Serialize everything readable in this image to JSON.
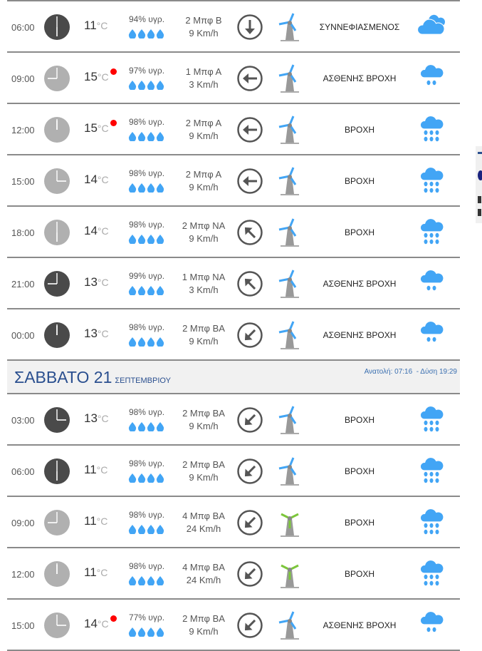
{
  "colors": {
    "accent": "#42a5f5",
    "night_clock": "#4a4a4a",
    "day_clock": "#b0b0b0",
    "alert": "#ff0000",
    "strong_wind": "#7cc63b",
    "header_text": "#2a4f8f"
  },
  "day_header": {
    "day": "ΣΑΒΒΑΤΟ 21",
    "month": "ΣΕΠΤΕΜΒΡΙΟΥ",
    "sunrise_label": "Ανατολή:",
    "sunrise": "07:16",
    "sunset_label": "- Δύση",
    "sunset": "19:29"
  },
  "unit": "°C",
  "rows_before": [
    {
      "time": "06:00",
      "night": true,
      "temp": "11",
      "alert": false,
      "humidity": "94% υγρ.",
      "beaufort": "2 Μπφ Β",
      "speed": "9 Km/h",
      "dir": "down",
      "strong": false,
      "desc": "ΣΥΝΝΕΦΙΑΣΜΕΝΟΣ",
      "icon": "cloudy"
    },
    {
      "time": "09:00",
      "night": false,
      "temp": "15",
      "alert": true,
      "humidity": "97% υγρ.",
      "beaufort": "1 Μπφ Α",
      "speed": "3 Km/h",
      "dir": "left",
      "strong": false,
      "desc": "ΑΣΘΕΝΗΣ ΒΡΟΧΗ",
      "icon": "light-rain"
    },
    {
      "time": "12:00",
      "night": false,
      "temp": "15",
      "alert": true,
      "humidity": "98% υγρ.",
      "beaufort": "2 Μπφ Α",
      "speed": "9 Km/h",
      "dir": "left",
      "strong": false,
      "desc": "ΒΡΟΧΗ",
      "icon": "rain"
    },
    {
      "time": "15:00",
      "night": false,
      "temp": "14",
      "alert": false,
      "humidity": "98% υγρ.",
      "beaufort": "2 Μπφ Α",
      "speed": "9 Km/h",
      "dir": "left",
      "strong": false,
      "desc": "ΒΡΟΧΗ",
      "icon": "rain"
    },
    {
      "time": "18:00",
      "night": false,
      "temp": "14",
      "alert": false,
      "humidity": "98% υγρ.",
      "beaufort": "2 Μπφ ΝΑ",
      "speed": "9 Km/h",
      "dir": "up-left",
      "strong": false,
      "desc": "ΒΡΟΧΗ",
      "icon": "rain"
    },
    {
      "time": "21:00",
      "night": true,
      "temp": "13",
      "alert": false,
      "humidity": "99% υγρ.",
      "beaufort": "1 Μπφ ΝΑ",
      "speed": "3 Km/h",
      "dir": "up-left",
      "strong": false,
      "desc": "ΑΣΘΕΝΗΣ ΒΡΟΧΗ",
      "icon": "light-rain"
    },
    {
      "time": "00:00",
      "night": true,
      "temp": "13",
      "alert": false,
      "humidity": "98% υγρ.",
      "beaufort": "2 Μπφ ΒΑ",
      "speed": "9 Km/h",
      "dir": "down-left",
      "strong": false,
      "desc": "ΑΣΘΕΝΗΣ ΒΡΟΧΗ",
      "icon": "light-rain"
    }
  ],
  "rows_after": [
    {
      "time": "03:00",
      "night": true,
      "temp": "13",
      "alert": false,
      "humidity": "98% υγρ.",
      "beaufort": "2 Μπφ ΒΑ",
      "speed": "9 Km/h",
      "dir": "down-left",
      "strong": false,
      "desc": "ΒΡΟΧΗ",
      "icon": "rain"
    },
    {
      "time": "06:00",
      "night": true,
      "temp": "11",
      "alert": false,
      "humidity": "98% υγρ.",
      "beaufort": "2 Μπφ ΒΑ",
      "speed": "9 Km/h",
      "dir": "down-left",
      "strong": false,
      "desc": "ΒΡΟΧΗ",
      "icon": "rain"
    },
    {
      "time": "09:00",
      "night": false,
      "temp": "11",
      "alert": false,
      "humidity": "98% υγρ.",
      "beaufort": "4 Μπφ ΒΑ",
      "speed": "24 Km/h",
      "dir": "down-left",
      "strong": true,
      "desc": "ΒΡΟΧΗ",
      "icon": "rain"
    },
    {
      "time": "12:00",
      "night": false,
      "temp": "11",
      "alert": false,
      "humidity": "98% υγρ.",
      "beaufort": "4 Μπφ ΒΑ",
      "speed": "24 Km/h",
      "dir": "down-left",
      "strong": true,
      "desc": "ΒΡΟΧΗ",
      "icon": "rain"
    },
    {
      "time": "15:00",
      "night": false,
      "temp": "14",
      "alert": true,
      "humidity": "77% υγρ.",
      "beaufort": "2 Μπφ ΒΑ",
      "speed": "9 Km/h",
      "dir": "down-left",
      "strong": false,
      "desc": "ΑΣΘΕΝΗΣ ΒΡΟΧΗ",
      "icon": "light-rain"
    }
  ]
}
